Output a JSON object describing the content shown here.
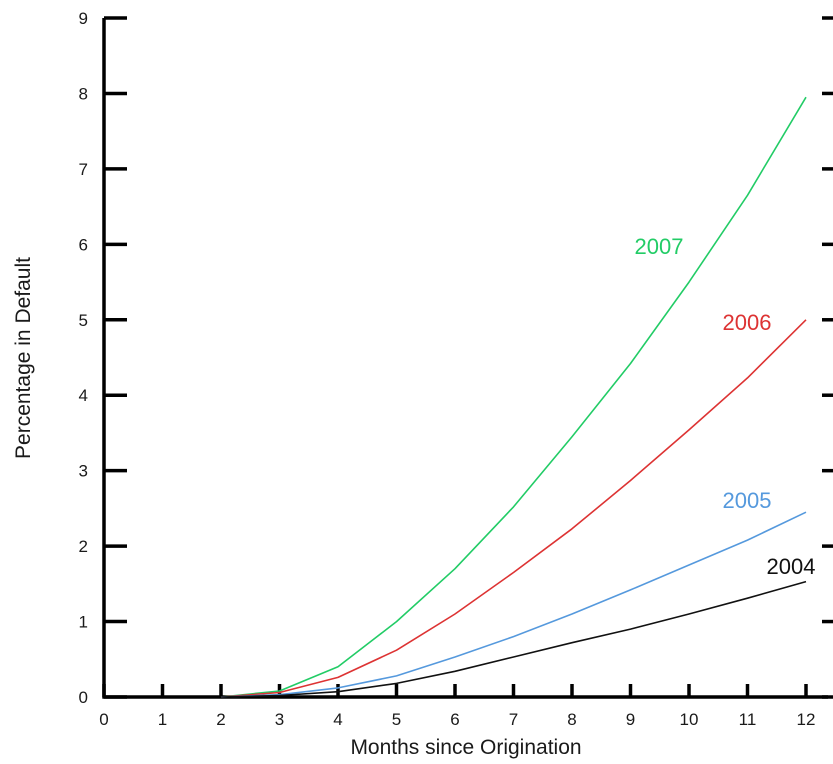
{
  "chart_data": {
    "type": "line",
    "xlabel": "Months since Origination",
    "ylabel": "Percentage in Default",
    "xlim": [
      0,
      12
    ],
    "ylim": [
      0,
      9
    ],
    "x_ticks": [
      "0",
      "1",
      "2",
      "3",
      "4",
      "5",
      "6",
      "7",
      "8",
      "9",
      "10",
      "11",
      "12"
    ],
    "y_ticks": [
      "0",
      "1",
      "2",
      "3",
      "4",
      "5",
      "6",
      "7",
      "8",
      "9"
    ],
    "grid": false,
    "legend": "inline labels",
    "x": [
      2,
      3,
      4,
      5,
      6,
      7,
      8,
      9,
      10,
      11,
      12
    ],
    "series": [
      {
        "name": "2007",
        "color": "#22cc66",
        "values": [
          0,
          0.08,
          0.4,
          1.0,
          1.7,
          2.52,
          3.45,
          4.42,
          5.5,
          6.65,
          7.95
        ]
      },
      {
        "name": "2006",
        "color": "#dd3333",
        "values": [
          0,
          0.06,
          0.26,
          0.62,
          1.1,
          1.65,
          2.23,
          2.87,
          3.54,
          4.23,
          5.0
        ]
      },
      {
        "name": "2005",
        "color": "#5599dd",
        "values": [
          0,
          0.03,
          0.12,
          0.28,
          0.53,
          0.8,
          1.1,
          1.42,
          1.75,
          2.08,
          2.45
        ]
      },
      {
        "name": "2004",
        "color": "#111111",
        "values": [
          0,
          0.02,
          0.07,
          0.18,
          0.34,
          0.53,
          0.72,
          0.9,
          1.1,
          1.31,
          1.53
        ]
      }
    ]
  }
}
